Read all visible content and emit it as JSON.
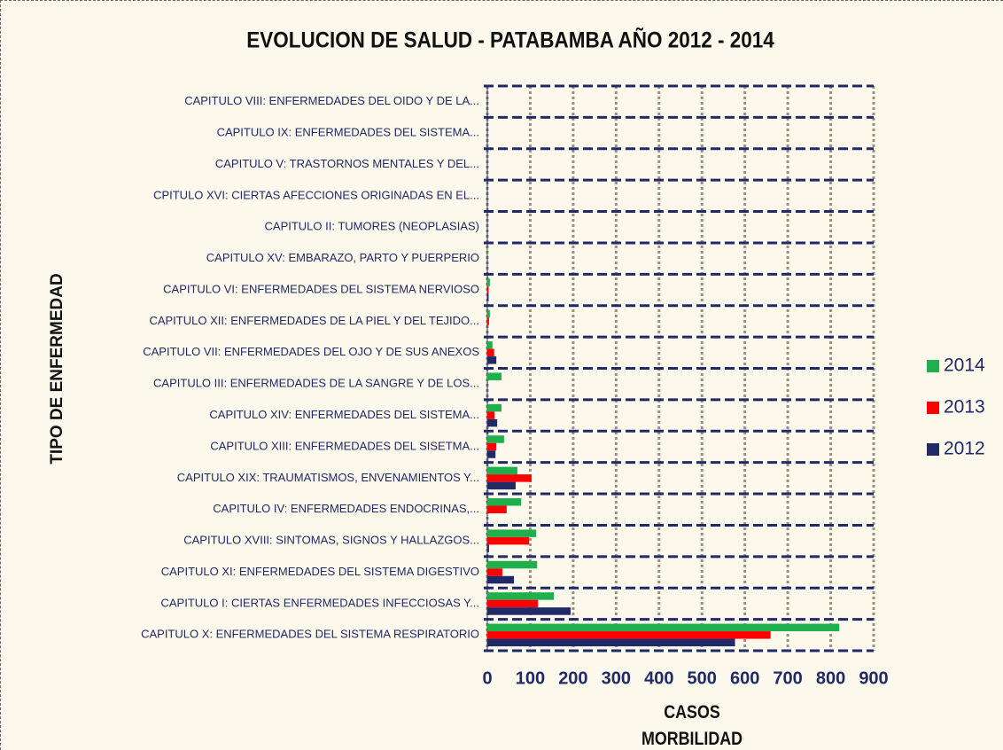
{
  "chart_data": {
    "type": "hbar",
    "title": "EVOLUCION DE SALUD - PATABAMBA AÑO 2012 - 2014",
    "x_label": "CASOS MORBILIDAD",
    "y_label": "TIPO DE ENFERMEDAD",
    "categories": [
      "CAPITULO VIII: ENFERMEDADES DEL OIDO Y DE LA...",
      "CAPITULO IX: ENFERMEDADES DEL SISTEMA...",
      "CAPITULO V: TRASTORNOS MENTALES Y DEL...",
      "CPITULO XVI: CIERTAS AFECCIONES ORIGINADAS EN EL...",
      "CAPITULO II: TUMORES (NEOPLASIAS)",
      "CAPITULO XV: EMBARAZO, PARTO Y PUERPERIO",
      "CAPITULO VI: ENFERMEDADES DEL SISTEMA NERVIOSO",
      "CAPITULO XII: ENFERMEDADES DE LA PIEL Y DEL TEJIDO...",
      "CAPITULO VII: ENFERMEDADES DEL OJO Y DE SUS ANEXOS",
      "CAPITULO III: ENFERMEDADES DE LA SANGRE Y DE LOS...",
      "CAPITULO XIV: ENFERMEDADES DEL SISTEMA...",
      "CAPITULO XIII: ENFERMEDADES DEL SISETMA...",
      "CAPITULO XIX: TRAUMATISMOS, ENVENAMIENTOS Y...",
      "CAPITULO IV: ENFERMEDADES ENDOCRINAS,...",
      "CAPITULO XVIII: SINTOMAS, SIGNOS Y HALLAZGOS...",
      "CAPITULO XI: ENFERMEDADES DEL SISTEMA DIGESTIVO",
      "CAPITULO I: CIERTAS ENFERMEDADES INFECCIOSAS Y...",
      "CAPITULO X: ENFERMEDADES DEL SISTEMA RESPIRATORIO"
    ],
    "series": [
      {
        "name": "2014",
        "color": "#1fb04d",
        "values": [
          0,
          0,
          0,
          0,
          0,
          1,
          6,
          6,
          12,
          33,
          33,
          39,
          70,
          79,
          114,
          116,
          155,
          820
        ]
      },
      {
        "name": "2013",
        "color": "#ff0000",
        "values": [
          0,
          0,
          0,
          0,
          0,
          0,
          3,
          4,
          16,
          0,
          17,
          21,
          103,
          45,
          97,
          35,
          118,
          660
        ]
      },
      {
        "name": "2012",
        "color": "#1f2a66",
        "values": [
          0,
          0,
          1,
          0,
          0,
          0,
          3,
          0,
          21,
          0,
          23,
          19,
          66,
          0,
          4,
          62,
          194,
          577
        ]
      }
    ],
    "xlim": [
      0,
      900
    ],
    "xticks": [
      0,
      100,
      200,
      300,
      400,
      500,
      600,
      700,
      800,
      900
    ],
    "grid": true
  }
}
